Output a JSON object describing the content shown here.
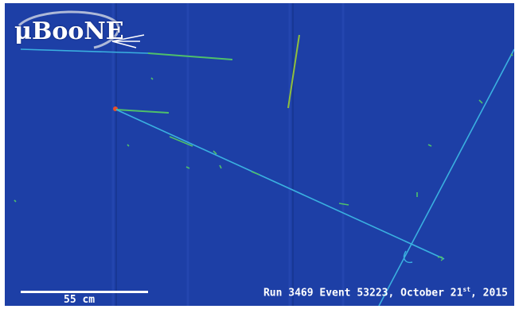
{
  "logo": {
    "text": "μBooNE"
  },
  "scale": {
    "label": "55 cm"
  },
  "caption": {
    "prefix": "Run 3469 Event 53223, October 21",
    "suffix": "st",
    "year": ", 2015"
  },
  "colors": {
    "background": "#1d3fa6",
    "track_main": "#3ab0e0",
    "track_green": "#4fc06a",
    "vertex": "#e8502a",
    "text": "#ffffff"
  }
}
